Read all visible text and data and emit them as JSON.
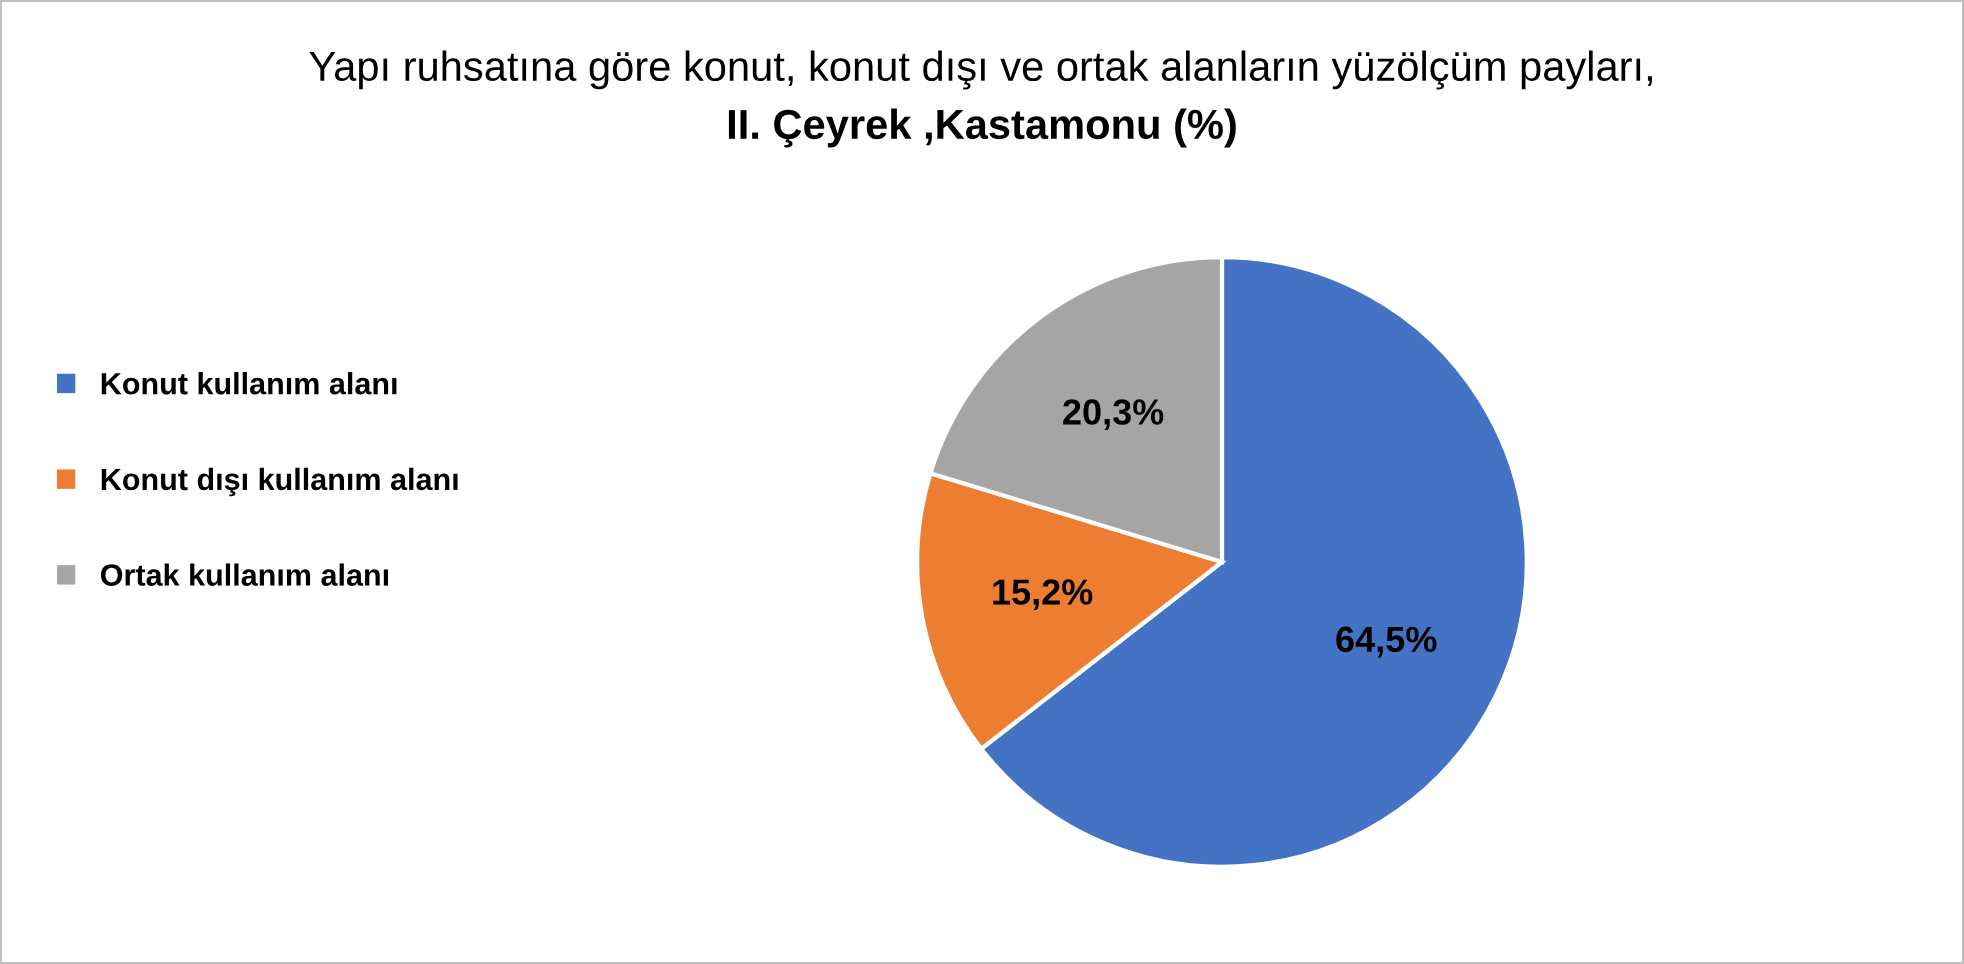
{
  "chart_data": {
    "type": "pie",
    "title": "Yapı ruhsatına göre konut, konut dışı ve ortak alanların yüzölçüm payları,",
    "subtitle": "II. Çeyrek ,Kastamonu (%)",
    "categories": [
      "Konut kullanım alanı",
      "Konut dışı kullanım alanı",
      "Ortak kullanım alanı"
    ],
    "values": [
      64.5,
      15.2,
      20.3
    ],
    "colors": [
      "#4472c4",
      "#ed7d31",
      "#a5a5a5"
    ],
    "value_labels": [
      "64,5%",
      "15,2%",
      "20,3%"
    ],
    "legend": "left"
  }
}
